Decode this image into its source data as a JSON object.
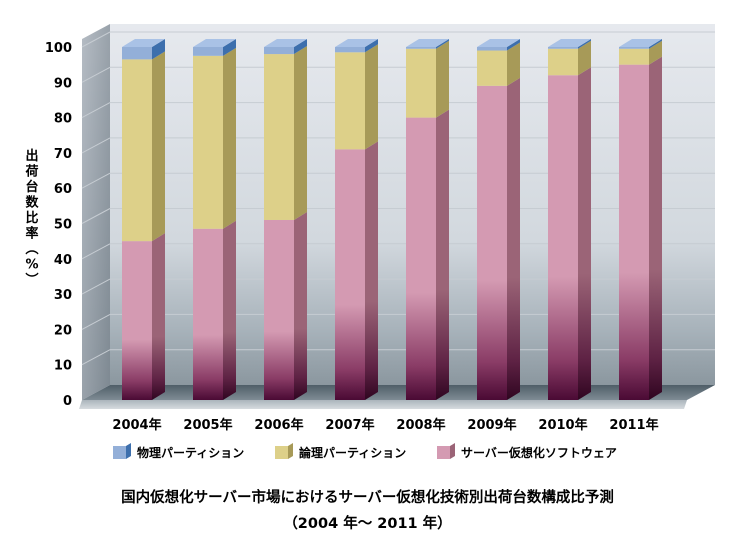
{
  "chart_data": {
    "type": "bar",
    "stacked": true,
    "render_3d": true,
    "categories": [
      "2004年",
      "2005年",
      "2006年",
      "2007年",
      "2008年",
      "2009年",
      "2010年",
      "2011年"
    ],
    "series": [
      {
        "name": "サーバー仮想化ソフトウェア",
        "values": [
          45,
          48.5,
          51,
          71,
          80,
          89,
          92,
          95
        ],
        "color": "#d49ab2",
        "top_color": "#c08aa0",
        "side_color": "#9b6477",
        "dark_color": "#4a0a34"
      },
      {
        "name": "論理パーティション",
        "values": [
          51.5,
          49,
          47,
          27.5,
          19.5,
          10,
          7.5,
          4.5
        ],
        "color": "#ddd089",
        "top_color": "#ece3a8",
        "side_color": "#a79a58"
      },
      {
        "name": "物理パーティション",
        "values": [
          3.5,
          2.5,
          2,
          1.5,
          0.5,
          1,
          0.5,
          0.5
        ],
        "color": "#93afd8",
        "top_color": "#a9c2e6",
        "side_color": "#3d6fad"
      }
    ],
    "ylabel": "出荷台数比率（%）",
    "ylim": [
      0,
      100
    ],
    "yticks": [
      0,
      10,
      20,
      30,
      40,
      50,
      60,
      70,
      80,
      90,
      100
    ],
    "legend_position": "bottom",
    "title": "国内仮想化サーバー市場におけるサーバー仮想化技術別出荷台数構成比予測",
    "subtitle": "（2004 年〜 2011 年）"
  }
}
